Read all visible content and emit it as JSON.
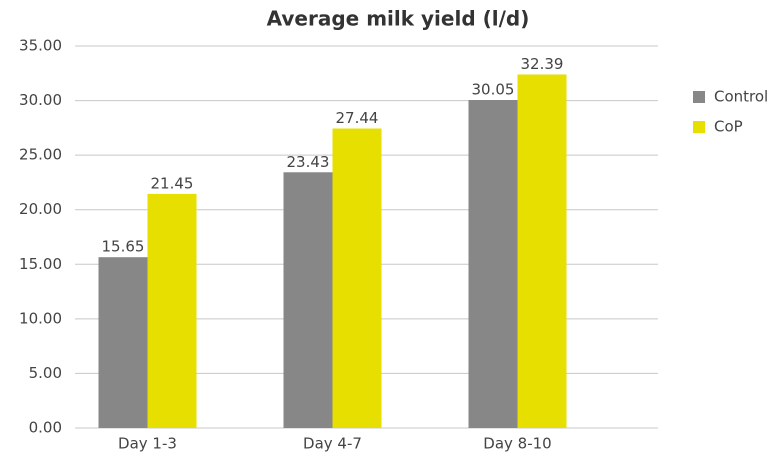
{
  "chart_data": {
    "type": "bar",
    "title": "Average milk yield (l/d)",
    "categories": [
      "Day 1-3",
      "Day 4-7",
      "Day 8-10"
    ],
    "series": [
      {
        "name": "Control",
        "color": "#878787",
        "values": [
          15.65,
          23.43,
          30.05
        ]
      },
      {
        "name": "CoP",
        "color": "#e6df00",
        "values": [
          21.45,
          27.44,
          32.39
        ]
      }
    ],
    "ylim": [
      0,
      35
    ],
    "yticks": [
      {
        "value": 0,
        "label": "0.00"
      },
      {
        "value": 5,
        "label": "5.00"
      },
      {
        "value": 10,
        "label": "10.00"
      },
      {
        "value": 15,
        "label": "15.00"
      },
      {
        "value": 20,
        "label": "20.00"
      },
      {
        "value": 25,
        "label": "25.00"
      },
      {
        "value": 30,
        "label": "30.00"
      },
      {
        "value": 35,
        "label": "35.00"
      }
    ],
    "grid": true,
    "legend": "right"
  }
}
